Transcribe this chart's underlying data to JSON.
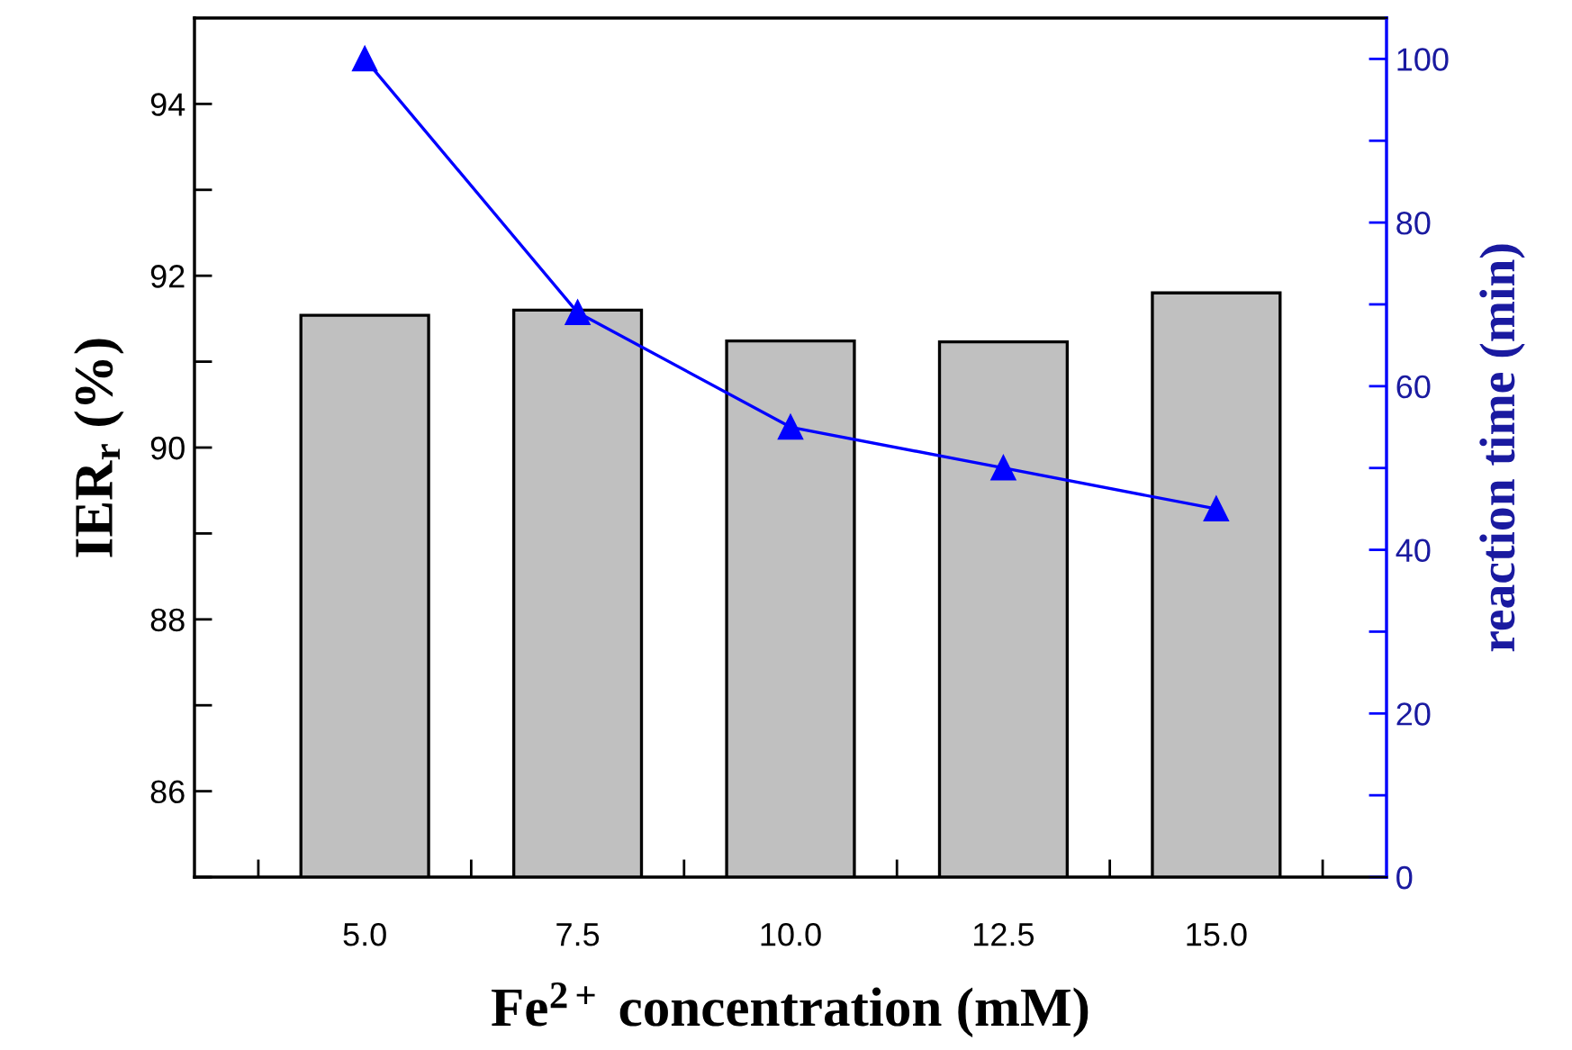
{
  "chart_data": {
    "type": "bar",
    "xlabel": "Fe$^{2+}$ concentration (mM)",
    "ylabel": "IER$_{r}$ (%)",
    "y2label": "reaction time (min)",
    "x": [
      5.0,
      7.5,
      10.0,
      12.5,
      15.0
    ],
    "xlim": [
      3,
      17
    ],
    "xticks": [
      {
        "value": 3.75,
        "label": null
      },
      {
        "value": 5,
        "label": "5.0"
      },
      {
        "value": 6.25,
        "label": null
      },
      {
        "value": 7.5,
        "label": "7.5"
      },
      {
        "value": 8.75,
        "label": null
      },
      {
        "value": 10,
        "label": "10.0"
      },
      {
        "value": 11.25,
        "label": null
      },
      {
        "value": 12.5,
        "label": "12.5"
      },
      {
        "value": 13.75,
        "label": null
      },
      {
        "value": 15,
        "label": "15.0"
      },
      {
        "value": 16.25,
        "label": null
      }
    ],
    "ylim": [
      85,
      95
    ],
    "yticks": [
      {
        "value": 85,
        "label": null
      },
      86,
      {
        "value": 87,
        "label": null
      },
      88,
      {
        "value": 89,
        "label": null
      },
      90,
      {
        "value": 91,
        "label": null
      },
      92,
      {
        "value": 93,
        "label": null
      },
      94
    ],
    "y2lim": [
      0,
      105
    ],
    "y2ticks": [
      0,
      {
        "value": 10,
        "label": null
      },
      20,
      {
        "value": 30,
        "label": null
      },
      40,
      {
        "value": 50,
        "label": null
      },
      60,
      {
        "value": 70,
        "label": null
      },
      80,
      {
        "value": 90,
        "label": null
      },
      100
    ],
    "series": [
      {
        "color": "#c0c0c0",
        "values": [
          91.54,
          91.6,
          91.24,
          91.23,
          91.8
        ]
      },
      {
        "type": "line",
        "axis": "y2",
        "color": "#0000ff",
        "marker": "triangle",
        "line_style": "solid",
        "values": [
          100,
          69,
          55,
          50,
          45
        ]
      }
    ],
    "grid": false,
    "legend": false
  }
}
